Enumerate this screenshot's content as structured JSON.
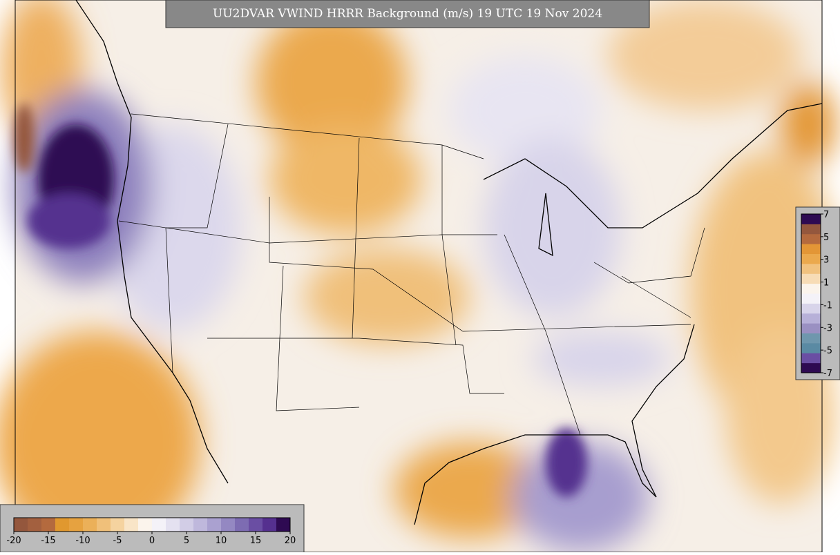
{
  "map": {
    "title": "UU2DVAR VWIND HRRR Background (m/s) 19 UTC 19 Nov 2024",
    "colorbars": [
      {
        "orientation": "horizontal",
        "lim": [
          -20,
          20
        ],
        "ticks": [
          -20,
          -15,
          -10,
          -5,
          0,
          5,
          10,
          15,
          20
        ],
        "colors": [
          "#94573d",
          "#a3603f",
          "#b46a3e",
          "#e0982f",
          "#e6a240",
          "#ebb059",
          "#f0c07a",
          "#f5d39f",
          "#f9e5c7",
          "#fbf4ec",
          "#f4f2f8",
          "#e4e1f0",
          "#d2cde6",
          "#bfb8dc",
          "#aaa1d0",
          "#9488c2",
          "#7d6cb2",
          "#6a4ea3",
          "#55308f",
          "#2e0a52"
        ]
      },
      {
        "orientation": "vertical",
        "lim": [
          -7,
          7
        ],
        "ticks": [
          7,
          5,
          3,
          1,
          -1,
          -3,
          -5,
          -7
        ],
        "colors": [
          "#2e0a52",
          "#6a4ea3",
          "#5a8aa3",
          "#6f97ad",
          "#9a90c2",
          "#b7b0d8",
          "#d8d4ea",
          "#f4f2f8",
          "#fbf4ec",
          "#f7dcb6",
          "#f1c27f",
          "#eba94d",
          "#e39636",
          "#b46a3e",
          "#94573d",
          "#2e0a52"
        ]
      }
    ]
  }
}
